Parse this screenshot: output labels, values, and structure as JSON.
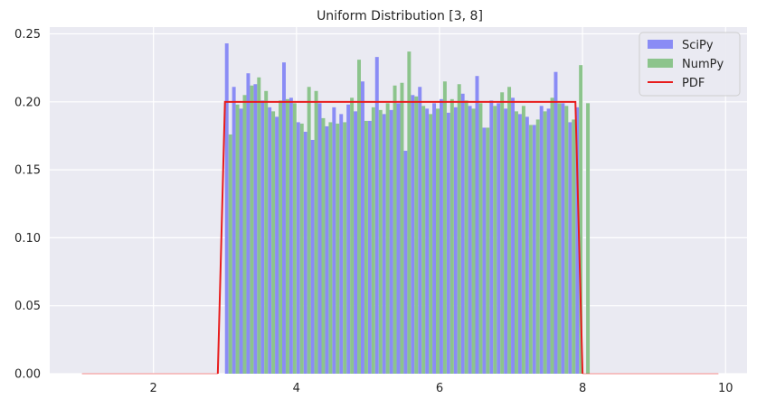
{
  "chart_data": {
    "type": "bar",
    "title": "Uniform Distribution [3, 8]",
    "xlabel": "",
    "ylabel": "",
    "xlim": [
      0.55,
      10.3
    ],
    "ylim": [
      0,
      0.255
    ],
    "xticks": [
      2,
      4,
      6,
      8,
      10
    ],
    "yticks": [
      0.0,
      0.05,
      0.1,
      0.15,
      0.2,
      0.25
    ],
    "ytick_labels": [
      "0.00",
      "0.05",
      "0.10",
      "0.15",
      "0.20",
      "0.25"
    ],
    "grid": true,
    "legend_position": "top-right",
    "legend": [
      "SciPy",
      "NumPy",
      "PDF"
    ],
    "bin_width": 0.05,
    "series": [
      {
        "name": "SciPy",
        "color": "#8a8cf5",
        "x_start": 3.025,
        "values": [
          0.243,
          0.211,
          0.195,
          0.221,
          0.213,
          0.201,
          0.196,
          0.189,
          0.229,
          0.203,
          0.185,
          0.178,
          0.172,
          0.199,
          0.182,
          0.196,
          0.191,
          0.198,
          0.193,
          0.215,
          0.186,
          0.233,
          0.191,
          0.194,
          0.199,
          0.164,
          0.205,
          0.211,
          0.195,
          0.199,
          0.202,
          0.192,
          0.196,
          0.206,
          0.197,
          0.219,
          0.181,
          0.201,
          0.199,
          0.195,
          0.203,
          0.191,
          0.189,
          0.183,
          0.197,
          0.195,
          0.222,
          0.199,
          0.185,
          0.196
        ]
      },
      {
        "name": "NumPy",
        "color": "#8cc48c",
        "x_start": 3.075,
        "values": [
          0.176,
          0.198,
          0.205,
          0.212,
          0.218,
          0.208,
          0.193,
          0.201,
          0.202,
          0.199,
          0.184,
          0.211,
          0.208,
          0.188,
          0.185,
          0.184,
          0.185,
          0.203,
          0.231,
          0.186,
          0.196,
          0.194,
          0.199,
          0.212,
          0.214,
          0.237,
          0.204,
          0.197,
          0.191,
          0.195,
          0.215,
          0.202,
          0.213,
          0.201,
          0.195,
          0.199,
          0.181,
          0.197,
          0.207,
          0.211,
          0.193,
          0.197,
          0.183,
          0.187,
          0.193,
          0.203,
          0.199,
          0.197,
          0.187,
          0.227,
          0.199
        ]
      },
      {
        "name": "PDF",
        "color": "#e81c1c",
        "type": "line",
        "x": [
          1,
          2.9,
          2.9,
          3,
          7.9,
          7.9,
          8,
          9.9
        ],
        "y": [
          0,
          0,
          0,
          0.2,
          0.2,
          0.2,
          0,
          0
        ]
      }
    ]
  }
}
